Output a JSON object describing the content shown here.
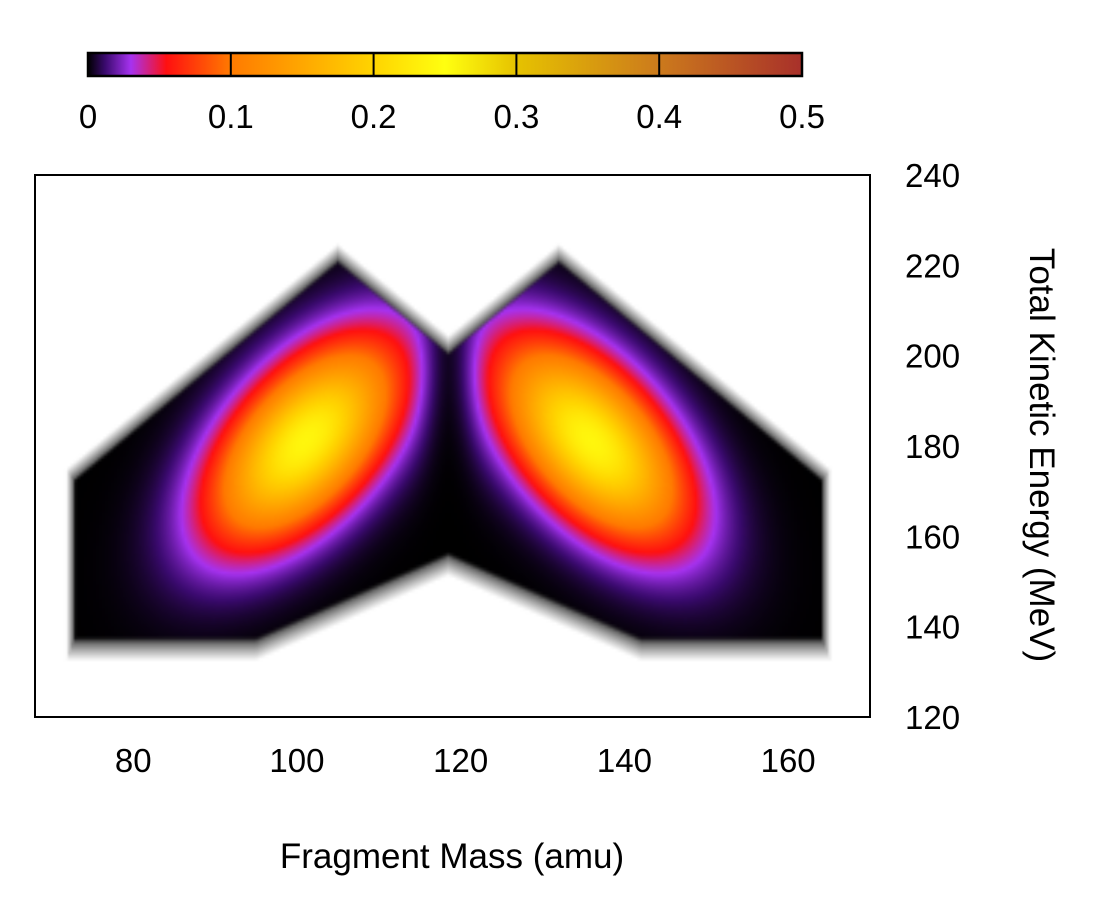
{
  "chart_data": {
    "type": "heatmap",
    "title": "",
    "xlabel": "Fragment Mass (amu)",
    "ylabel": "Total Kinetic Energy (MeV)",
    "xlim": [
      68,
      170
    ],
    "ylim": [
      120,
      240
    ],
    "x_ticks": [
      80,
      100,
      120,
      140,
      160
    ],
    "y_ticks": [
      120,
      140,
      160,
      180,
      200,
      220,
      240
    ],
    "x_tick_labels": [
      "80",
      "100",
      "120",
      "140",
      "160"
    ],
    "y_tick_labels": [
      "120",
      "140",
      "160",
      "180",
      "200",
      "220",
      "240"
    ],
    "grid": false,
    "colorbar": {
      "placement": "top",
      "min": 0,
      "max": 0.5,
      "ticks": [
        0,
        0.1,
        0.2,
        0.3,
        0.4,
        0.5
      ],
      "tick_labels": [
        "0",
        "0.1",
        "0.2",
        "0.3",
        "0.4",
        "0.5"
      ],
      "colors": [
        {
          "value": 0.0,
          "color": "#000000"
        },
        {
          "value": 0.012,
          "color": "#3a0a6e"
        },
        {
          "value": 0.03,
          "color": "#a632f0"
        },
        {
          "value": 0.055,
          "color": "#ff1010"
        },
        {
          "value": 0.1,
          "color": "#ff7a00"
        },
        {
          "value": 0.2,
          "color": "#ffd400"
        },
        {
          "value": 0.25,
          "color": "#ffff10"
        },
        {
          "value": 0.3,
          "color": "#e6c200"
        },
        {
          "value": 0.4,
          "color": "#cc7a1c"
        },
        {
          "value": 0.5,
          "color": "#a8302a"
        }
      ]
    },
    "peaks": [
      {
        "mass": 101,
        "tke": 181,
        "value": 0.24
      },
      {
        "mass": 136,
        "tke": 181,
        "value": 0.24
      }
    ],
    "description": "Two-lobed (asymmetric fission) yield distribution, mirror-symmetric about mass 118.5"
  }
}
